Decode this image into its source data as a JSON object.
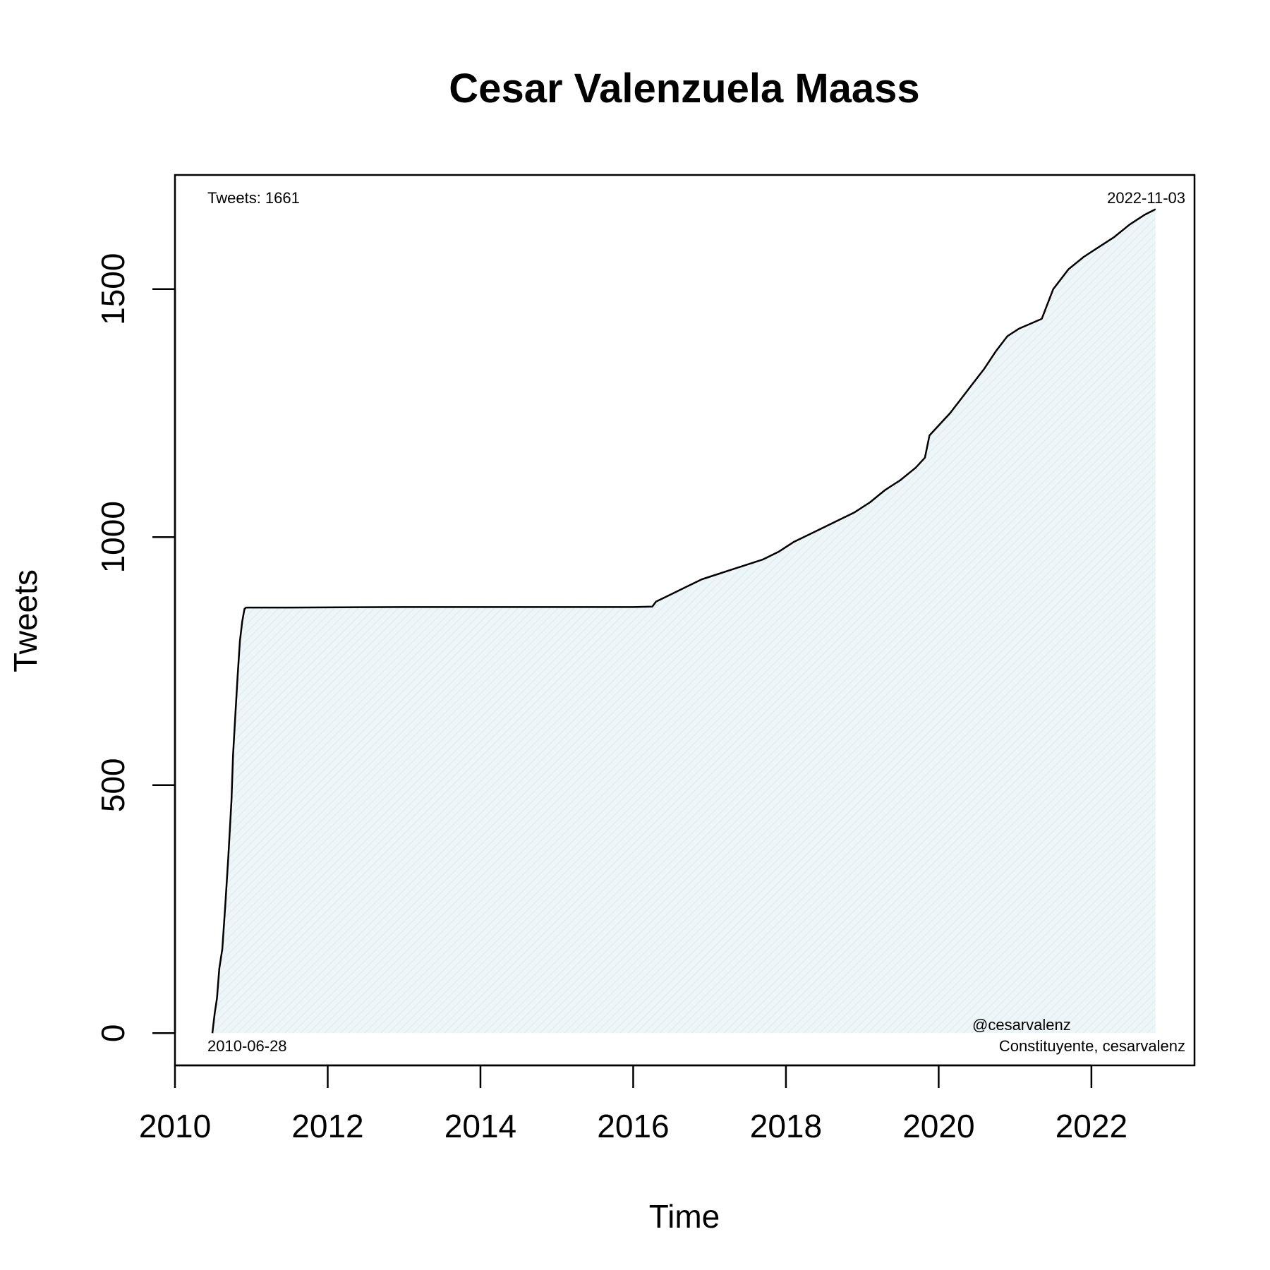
{
  "chart_data": {
    "type": "area",
    "title": "Cesar Valenzuela Maass",
    "xlabel": "Time",
    "ylabel": "Tweets",
    "xlim": [
      2010.0,
      2023.35
    ],
    "ylim": [
      -65,
      1730
    ],
    "x_ticks": [
      2010,
      2012,
      2014,
      2016,
      2018,
      2020,
      2022
    ],
    "x_tick_labels": [
      "2010",
      "2012",
      "2014",
      "2016",
      "2018",
      "2020",
      "2022"
    ],
    "y_ticks": [
      0,
      500,
      1000,
      1500
    ],
    "y_tick_labels": [
      "0",
      "500",
      "1000",
      "1500"
    ],
    "grid": false,
    "fill_color": "#e8f3f5",
    "line_color": "#000000",
    "annotations": {
      "top_left": "Tweets: 1661",
      "top_right": "2022-11-03",
      "bottom_left": "2010-06-28",
      "bottom_right_line1": "@cesarvalenz",
      "bottom_right_line2": "Constituyente, cesarvalenz"
    },
    "series": [
      {
        "x": [
          2010.49,
          2010.52,
          2010.55,
          2010.58,
          2010.62,
          2010.66,
          2010.7,
          2010.74,
          2010.76,
          2010.79,
          2010.82,
          2010.85,
          2010.88,
          2010.91,
          2010.93,
          2011.5,
          2013.0,
          2014.5,
          2016.0,
          2016.25,
          2016.3,
          2016.5,
          2016.7,
          2016.9,
          2017.1,
          2017.3,
          2017.5,
          2017.7,
          2017.9,
          2018.1,
          2018.3,
          2018.5,
          2018.7,
          2018.9,
          2019.1,
          2019.3,
          2019.5,
          2019.7,
          2019.82,
          2019.88,
          2020.0,
          2020.15,
          2020.3,
          2020.45,
          2020.6,
          2020.75,
          2020.9,
          2021.05,
          2021.2,
          2021.35,
          2021.5,
          2021.7,
          2021.9,
          2022.1,
          2022.3,
          2022.5,
          2022.7,
          2022.84
        ],
        "y": [
          0,
          40,
          70,
          130,
          170,
          260,
          360,
          470,
          560,
          640,
          720,
          790,
          830,
          855,
          858,
          858,
          859,
          859,
          859,
          860,
          870,
          885,
          900,
          915,
          925,
          935,
          945,
          955,
          970,
          990,
          1005,
          1020,
          1035,
          1050,
          1070,
          1095,
          1115,
          1140,
          1160,
          1205,
          1225,
          1250,
          1280,
          1310,
          1340,
          1375,
          1405,
          1420,
          1430,
          1440,
          1500,
          1540,
          1565,
          1585,
          1605,
          1630,
          1650,
          1661
        ]
      }
    ]
  }
}
